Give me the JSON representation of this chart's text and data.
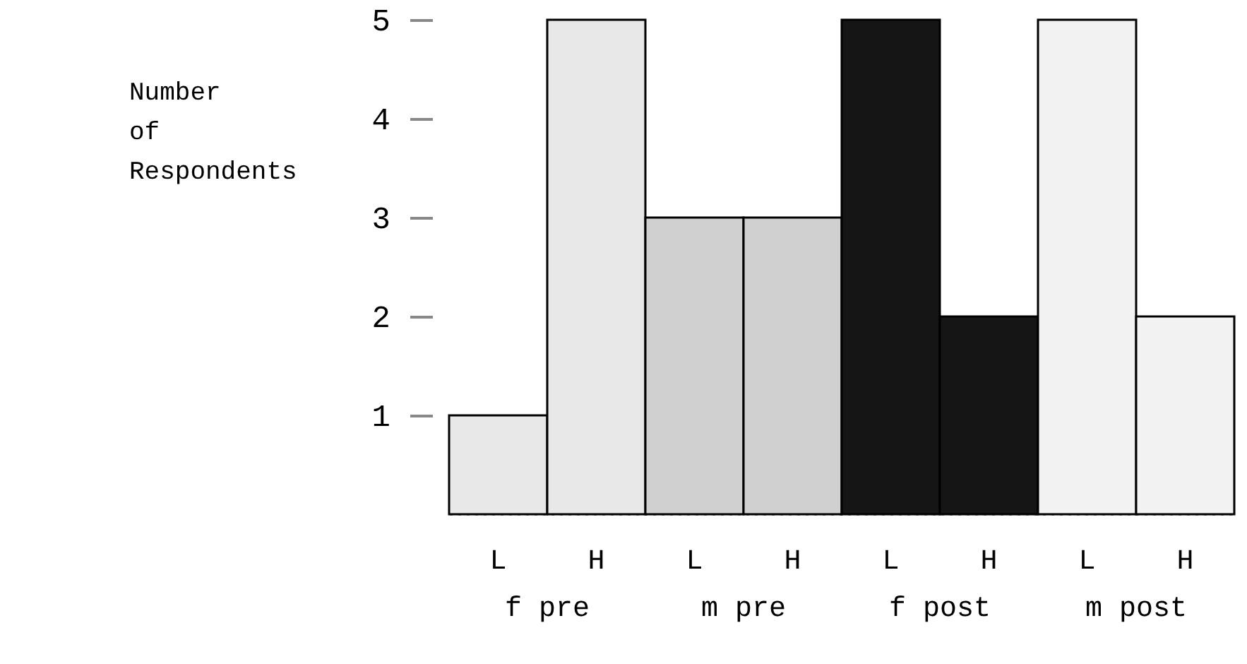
{
  "chart_data": {
    "type": "bar",
    "ylabel": "Number of Respondents",
    "categories": [
      "L",
      "H",
      "L",
      "H",
      "L",
      "H",
      "L",
      "H"
    ],
    "values": [
      1,
      5,
      3,
      3,
      5,
      2,
      5,
      2
    ],
    "colors": [
      "#e8e8e8",
      "#e8e8e8",
      "#d0d0d0",
      "#d0d0d0",
      "#151515",
      "#151515",
      "#f2f2f2",
      "#f2f2f2"
    ],
    "annotations": [
      "f pre",
      "m pre",
      "f post",
      "m post"
    ],
    "ylim": [
      0,
      5
    ],
    "yticks": [
      1,
      2,
      3,
      4,
      5
    ],
    "grid": false
  }
}
